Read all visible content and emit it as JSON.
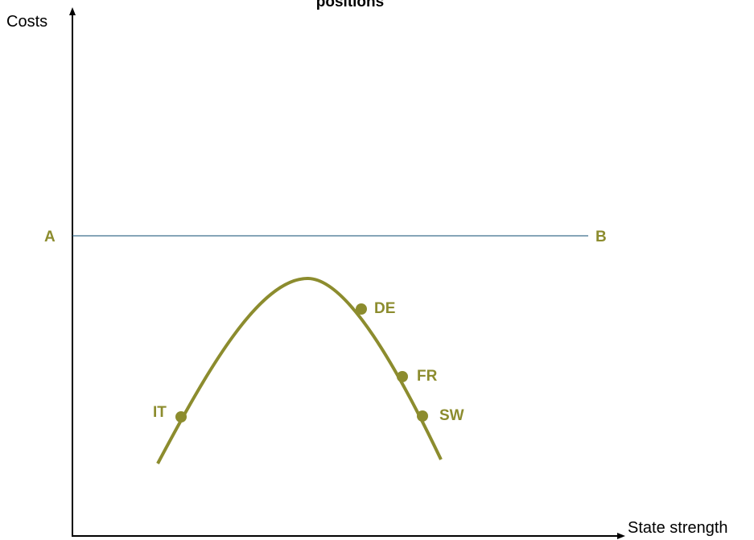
{
  "title": "positions",
  "axes": {
    "y_label": "Costs",
    "x_label": "State strength"
  },
  "threshold": {
    "start_label": "A",
    "end_label": "B"
  },
  "points": [
    {
      "label": "IT"
    },
    {
      "label": "DE"
    },
    {
      "label": "FR"
    },
    {
      "label": "SW"
    }
  ]
}
